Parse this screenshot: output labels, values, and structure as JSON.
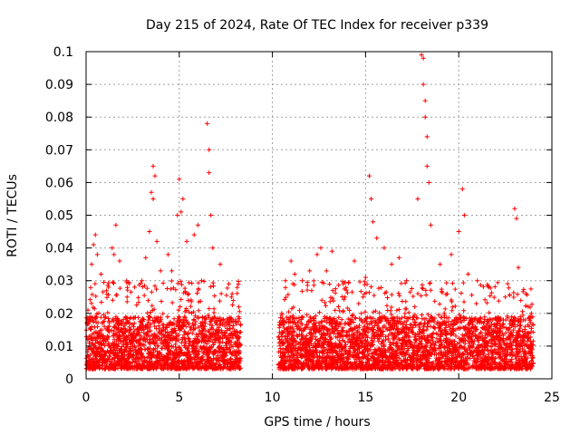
{
  "chart_data": {
    "type": "scatter",
    "title": "Day 215 of 2024, Rate Of TEC Index for receiver p339",
    "xlabel": "GPS time / hours",
    "ylabel": "ROTI / TECUs",
    "xlim": [
      0,
      25
    ],
    "ylim": [
      0,
      0.1
    ],
    "x_ticks": [
      "0",
      "5",
      "10",
      "15",
      "20",
      "25"
    ],
    "y_ticks": [
      "0",
      "0.01",
      "0.02",
      "0.03",
      "0.04",
      "0.05",
      "0.06",
      "0.07",
      "0.08",
      "0.09",
      "0.1"
    ],
    "grid": true,
    "marker": "plus",
    "color": "#ff0000",
    "data_gap_hours": [
      8.3,
      10.3
    ],
    "coverage_hours": [
      [
        0,
        8.3
      ],
      [
        10.3,
        24
      ]
    ],
    "series": [
      {
        "points": [
          [
            0.1,
            0.021
          ],
          [
            0.2,
            0.019
          ],
          [
            0.3,
            0.035
          ],
          [
            0.4,
            0.041
          ],
          [
            0.5,
            0.044
          ],
          [
            0.6,
            0.038
          ],
          [
            0.8,
            0.032
          ],
          [
            1.2,
            0.028
          ],
          [
            1.4,
            0.04
          ],
          [
            1.5,
            0.038
          ],
          [
            1.6,
            0.047
          ],
          [
            1.8,
            0.036
          ],
          [
            2.2,
            0.025
          ],
          [
            2.6,
            0.028
          ],
          [
            3.0,
            0.03
          ],
          [
            3.2,
            0.037
          ],
          [
            3.4,
            0.045
          ],
          [
            3.5,
            0.057
          ],
          [
            3.6,
            0.055
          ],
          [
            3.6,
            0.065
          ],
          [
            3.7,
            0.062
          ],
          [
            3.8,
            0.042
          ],
          [
            4.0,
            0.033
          ],
          [
            4.4,
            0.038
          ],
          [
            4.6,
            0.033
          ],
          [
            4.9,
            0.05
          ],
          [
            5.0,
            0.061
          ],
          [
            5.1,
            0.051
          ],
          [
            5.2,
            0.055
          ],
          [
            5.4,
            0.042
          ],
          [
            5.8,
            0.044
          ],
          [
            6.0,
            0.047
          ],
          [
            6.2,
            0.03
          ],
          [
            6.5,
            0.078
          ],
          [
            6.6,
            0.07
          ],
          [
            6.6,
            0.063
          ],
          [
            6.7,
            0.05
          ],
          [
            6.8,
            0.04
          ],
          [
            7.2,
            0.035
          ],
          [
            7.8,
            0.025
          ],
          [
            8.2,
            0.022
          ],
          [
            10.5,
            0.02
          ],
          [
            10.7,
            0.03
          ],
          [
            11.0,
            0.036
          ],
          [
            11.2,
            0.032
          ],
          [
            11.6,
            0.03
          ],
          [
            12.0,
            0.033
          ],
          [
            12.4,
            0.038
          ],
          [
            12.6,
            0.04
          ],
          [
            12.9,
            0.033
          ],
          [
            13.2,
            0.039
          ],
          [
            13.8,
            0.029
          ],
          [
            14.4,
            0.036
          ],
          [
            15.0,
            0.031
          ],
          [
            15.2,
            0.062
          ],
          [
            15.3,
            0.055
          ],
          [
            15.4,
            0.048
          ],
          [
            15.6,
            0.043
          ],
          [
            16.0,
            0.04
          ],
          [
            16.4,
            0.035
          ],
          [
            16.8,
            0.037
          ],
          [
            17.2,
            0.03
          ],
          [
            17.8,
            0.055
          ],
          [
            18.0,
            0.099
          ],
          [
            18.1,
            0.098
          ],
          [
            18.1,
            0.09
          ],
          [
            18.2,
            0.085
          ],
          [
            18.2,
            0.08
          ],
          [
            18.3,
            0.074
          ],
          [
            18.3,
            0.065
          ],
          [
            18.4,
            0.06
          ],
          [
            18.5,
            0.047
          ],
          [
            19.0,
            0.035
          ],
          [
            19.6,
            0.038
          ],
          [
            20.0,
            0.045
          ],
          [
            20.2,
            0.058
          ],
          [
            20.3,
            0.05
          ],
          [
            20.5,
            0.032
          ],
          [
            21.0,
            0.03
          ],
          [
            21.6,
            0.028
          ],
          [
            22.5,
            0.025
          ],
          [
            23.0,
            0.052
          ],
          [
            23.1,
            0.049
          ],
          [
            23.2,
            0.034
          ],
          [
            23.6,
            0.026
          ],
          [
            23.9,
            0.02
          ]
        ]
      }
    ]
  }
}
